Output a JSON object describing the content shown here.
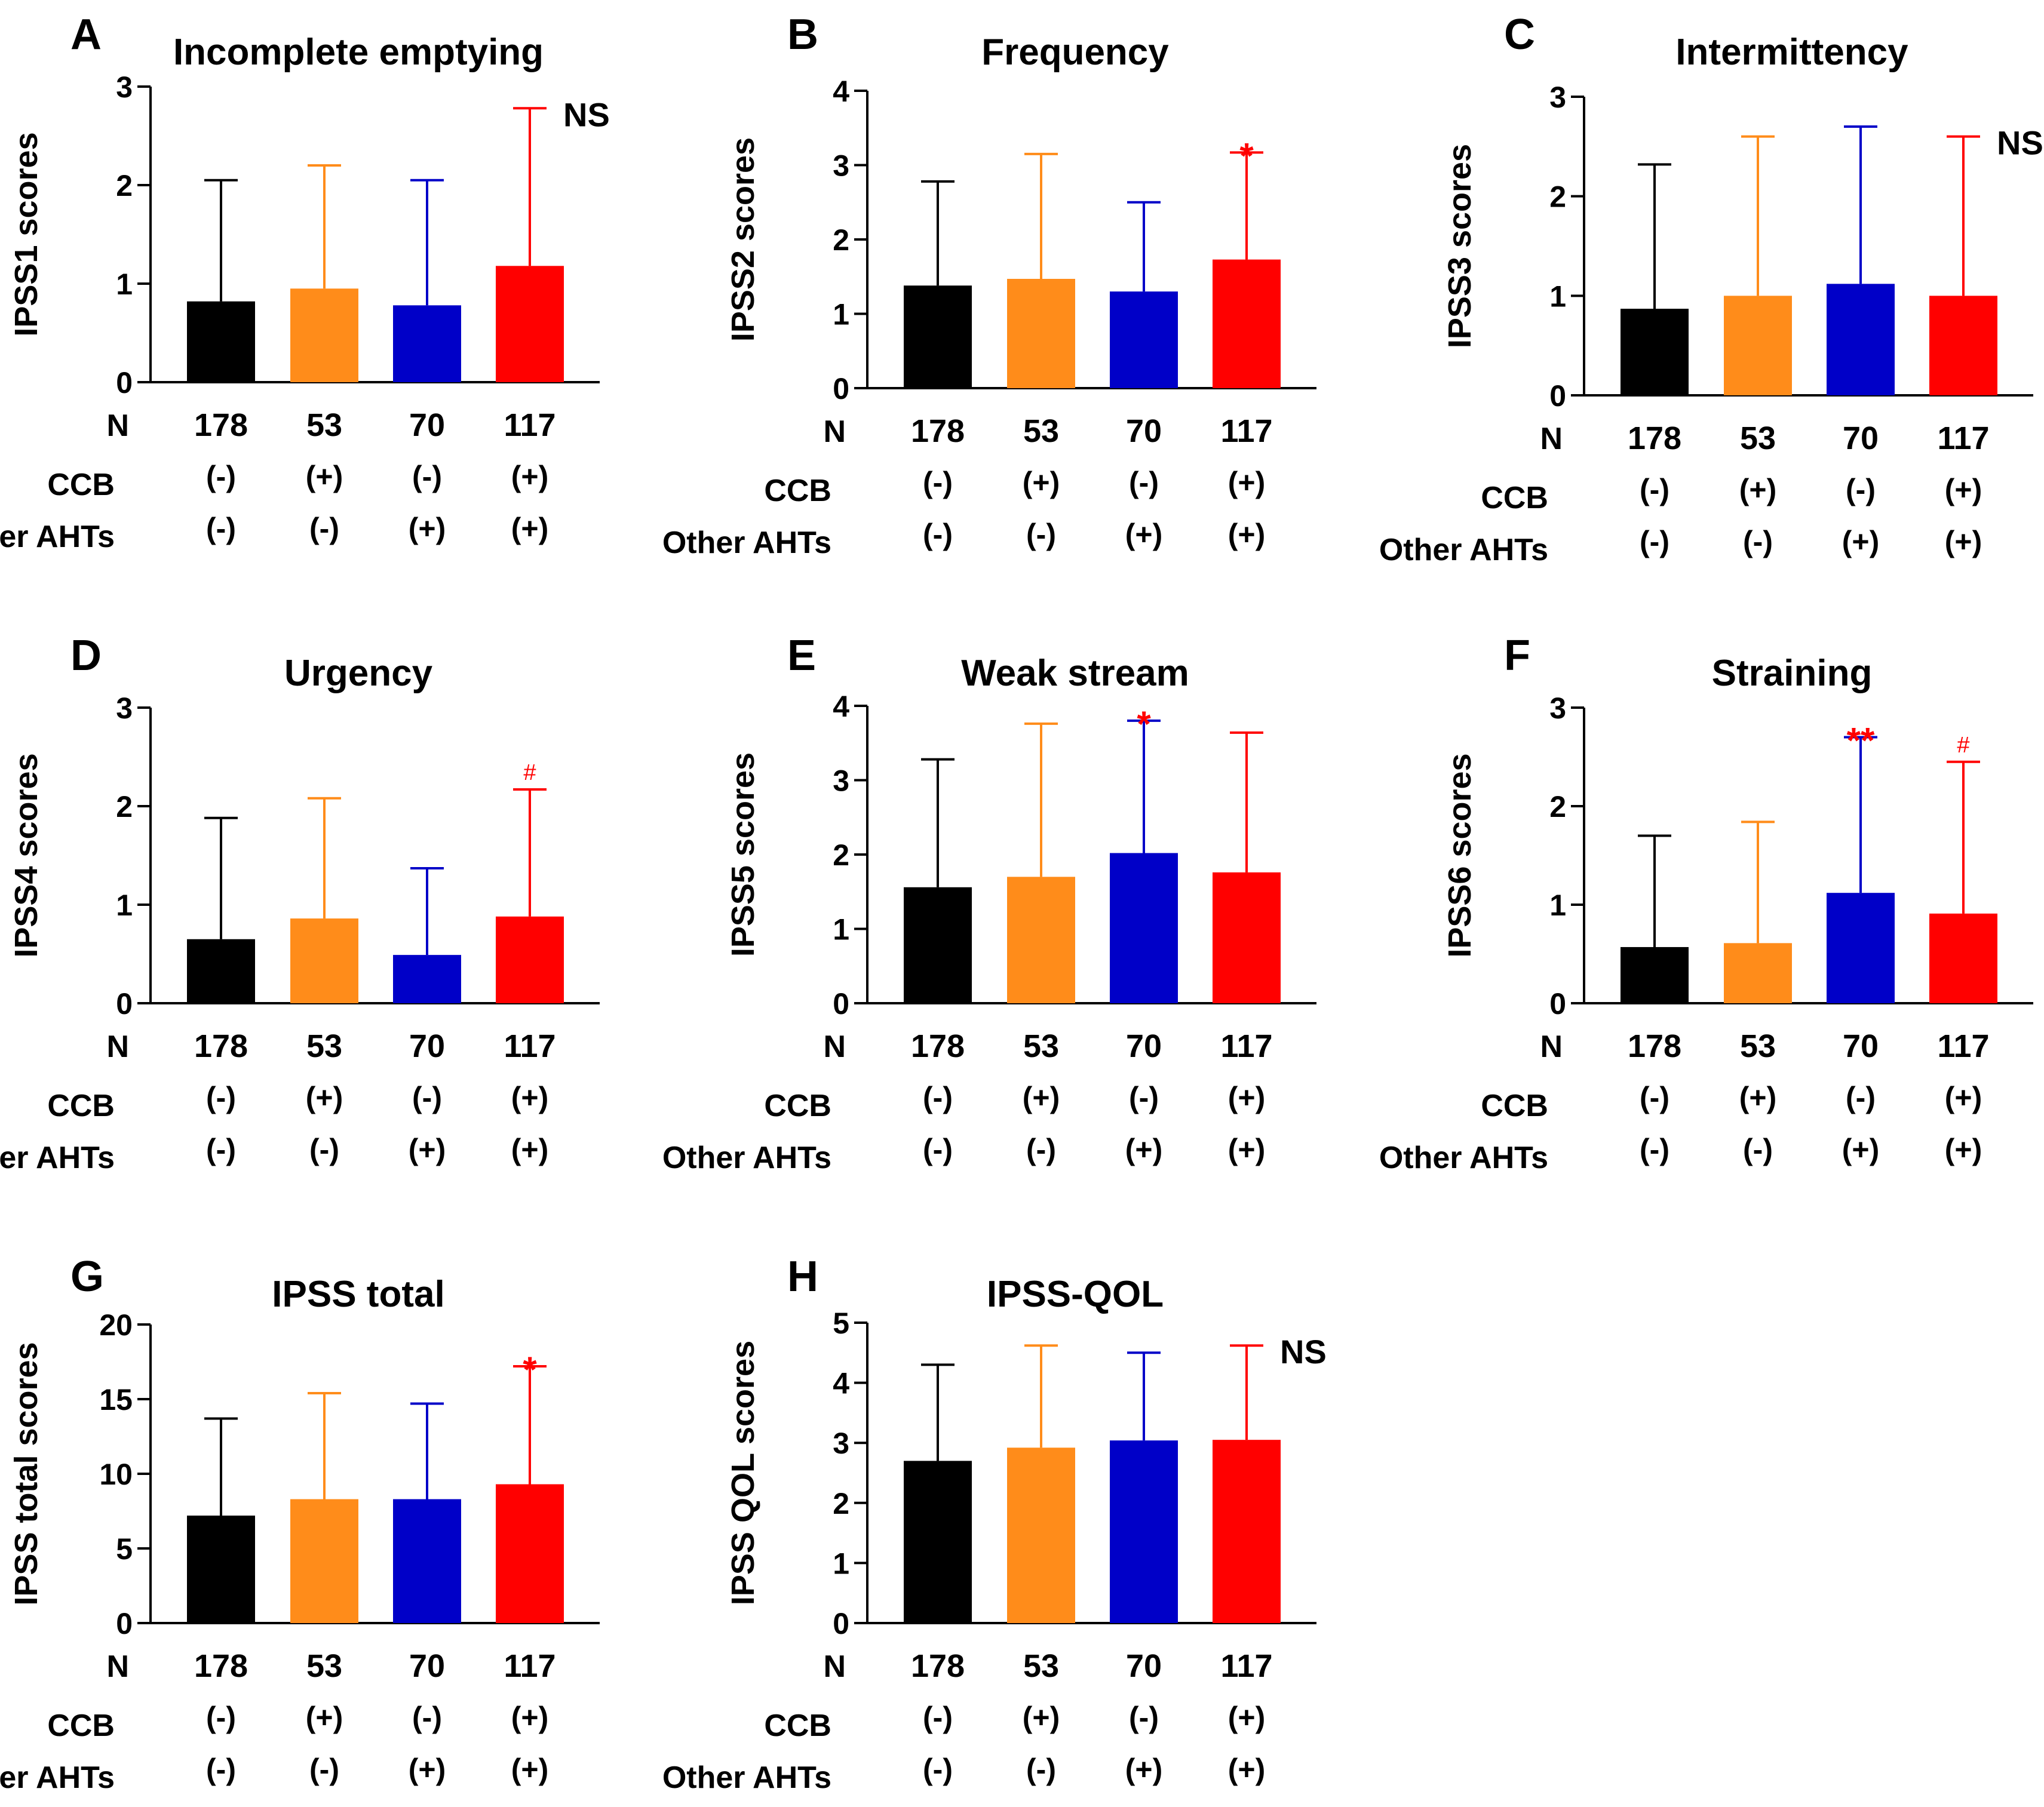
{
  "figure": {
    "row_labels": {
      "n": "N",
      "ccb": "CCB",
      "other": "Other AHTs"
    },
    "columns": [
      {
        "n": "178",
        "ccb": "(-)",
        "other": "(-)"
      },
      {
        "n": "53",
        "ccb": "(+)",
        "other": "(-)"
      },
      {
        "n": "70",
        "ccb": "(-)",
        "other": "(+)"
      },
      {
        "n": "117",
        "ccb": "(+)",
        "other": "(+)"
      }
    ],
    "colors": [
      "#000000",
      "#ff8c1a",
      "#0000c8",
      "#ff0000"
    ],
    "annotation_colors": {
      "NS": "#000000",
      "sig": "#ff0000"
    }
  },
  "chart_data": [
    {
      "type": "bar",
      "letter": "A",
      "title": "Incomplete emptying",
      "ylabel": "IPSS1 scores",
      "categories": [
        "178",
        "53",
        "70",
        "117"
      ],
      "values": [
        0.82,
        0.95,
        0.78,
        1.18
      ],
      "errors": [
        2.05,
        2.2,
        2.05,
        2.78
      ],
      "ylim": [
        0,
        3
      ],
      "yticks": [
        0,
        1,
        2,
        3
      ],
      "annotations": [
        {
          "bar": 3,
          "text": "NS"
        }
      ]
    },
    {
      "type": "bar",
      "letter": "B",
      "title": "Frequency",
      "ylabel": "IPSS2 scores",
      "categories": [
        "178",
        "53",
        "70",
        "117"
      ],
      "values": [
        1.38,
        1.47,
        1.3,
        1.73
      ],
      "errors": [
        2.78,
        3.15,
        2.5,
        3.17
      ],
      "ylim": [
        0,
        4
      ],
      "yticks": [
        0,
        1,
        2,
        3,
        4
      ],
      "annotations": [
        {
          "bar": 3,
          "text": "*"
        }
      ]
    },
    {
      "type": "bar",
      "letter": "C",
      "title": "Intermittency",
      "ylabel": "IPSS3 scores",
      "categories": [
        "178",
        "53",
        "70",
        "117"
      ],
      "values": [
        0.87,
        1.0,
        1.12,
        1.0
      ],
      "errors": [
        2.32,
        2.6,
        2.7,
        2.6
      ],
      "ylim": [
        0,
        3
      ],
      "yticks": [
        0,
        1,
        2,
        3
      ],
      "annotations": [
        {
          "bar": 3,
          "text": "NS"
        }
      ]
    },
    {
      "type": "bar",
      "letter": "D",
      "title": "Urgency",
      "ylabel": "IPSS4 scores",
      "categories": [
        "178",
        "53",
        "70",
        "117"
      ],
      "values": [
        0.65,
        0.86,
        0.49,
        0.88
      ],
      "errors": [
        1.88,
        2.08,
        1.37,
        2.17
      ],
      "ylim": [
        0,
        3
      ],
      "yticks": [
        0,
        1,
        2,
        3
      ],
      "annotations": [
        {
          "bar": 3,
          "text": "#"
        }
      ]
    },
    {
      "type": "bar",
      "letter": "E",
      "title": "Weak stream",
      "ylabel": "IPSS5 scores",
      "categories": [
        "178",
        "53",
        "70",
        "117"
      ],
      "values": [
        1.56,
        1.7,
        2.02,
        1.76
      ],
      "errors": [
        3.28,
        3.76,
        3.8,
        3.64
      ],
      "ylim": [
        0,
        4
      ],
      "yticks": [
        0,
        1,
        2,
        3,
        4
      ],
      "annotations": [
        {
          "bar": 2,
          "text": "*"
        }
      ]
    },
    {
      "type": "bar",
      "letter": "F",
      "title": "Straining",
      "ylabel": "IPSS6 scores",
      "categories": [
        "178",
        "53",
        "70",
        "117"
      ],
      "values": [
        0.57,
        0.61,
        1.12,
        0.91
      ],
      "errors": [
        1.7,
        1.84,
        2.7,
        2.45
      ],
      "ylim": [
        0,
        3
      ],
      "yticks": [
        0,
        1,
        2,
        3
      ],
      "annotations": [
        {
          "bar": 2,
          "text": "**"
        },
        {
          "bar": 3,
          "text": "#"
        }
      ]
    },
    {
      "type": "bar",
      "letter": "G",
      "title": "IPSS total",
      "ylabel": "IPSS total scores",
      "categories": [
        "178",
        "53",
        "70",
        "117"
      ],
      "values": [
        7.2,
        8.3,
        8.3,
        9.3
      ],
      "errors": [
        13.7,
        15.4,
        14.7,
        17.2
      ],
      "ylim": [
        0,
        20
      ],
      "yticks": [
        0,
        5,
        10,
        15,
        20
      ],
      "annotations": [
        {
          "bar": 3,
          "text": "*"
        }
      ]
    },
    {
      "type": "bar",
      "letter": "H",
      "title": "IPSS-QOL",
      "ylabel": "IPSS QOL scores",
      "categories": [
        "178",
        "53",
        "70",
        "117"
      ],
      "values": [
        2.7,
        2.92,
        3.04,
        3.05
      ],
      "errors": [
        4.3,
        4.62,
        4.5,
        4.62
      ],
      "ylim": [
        0,
        5
      ],
      "yticks": [
        0,
        1,
        2,
        3,
        4,
        5
      ],
      "annotations": [
        {
          "bar": 3,
          "text": "NS"
        }
      ]
    }
  ]
}
